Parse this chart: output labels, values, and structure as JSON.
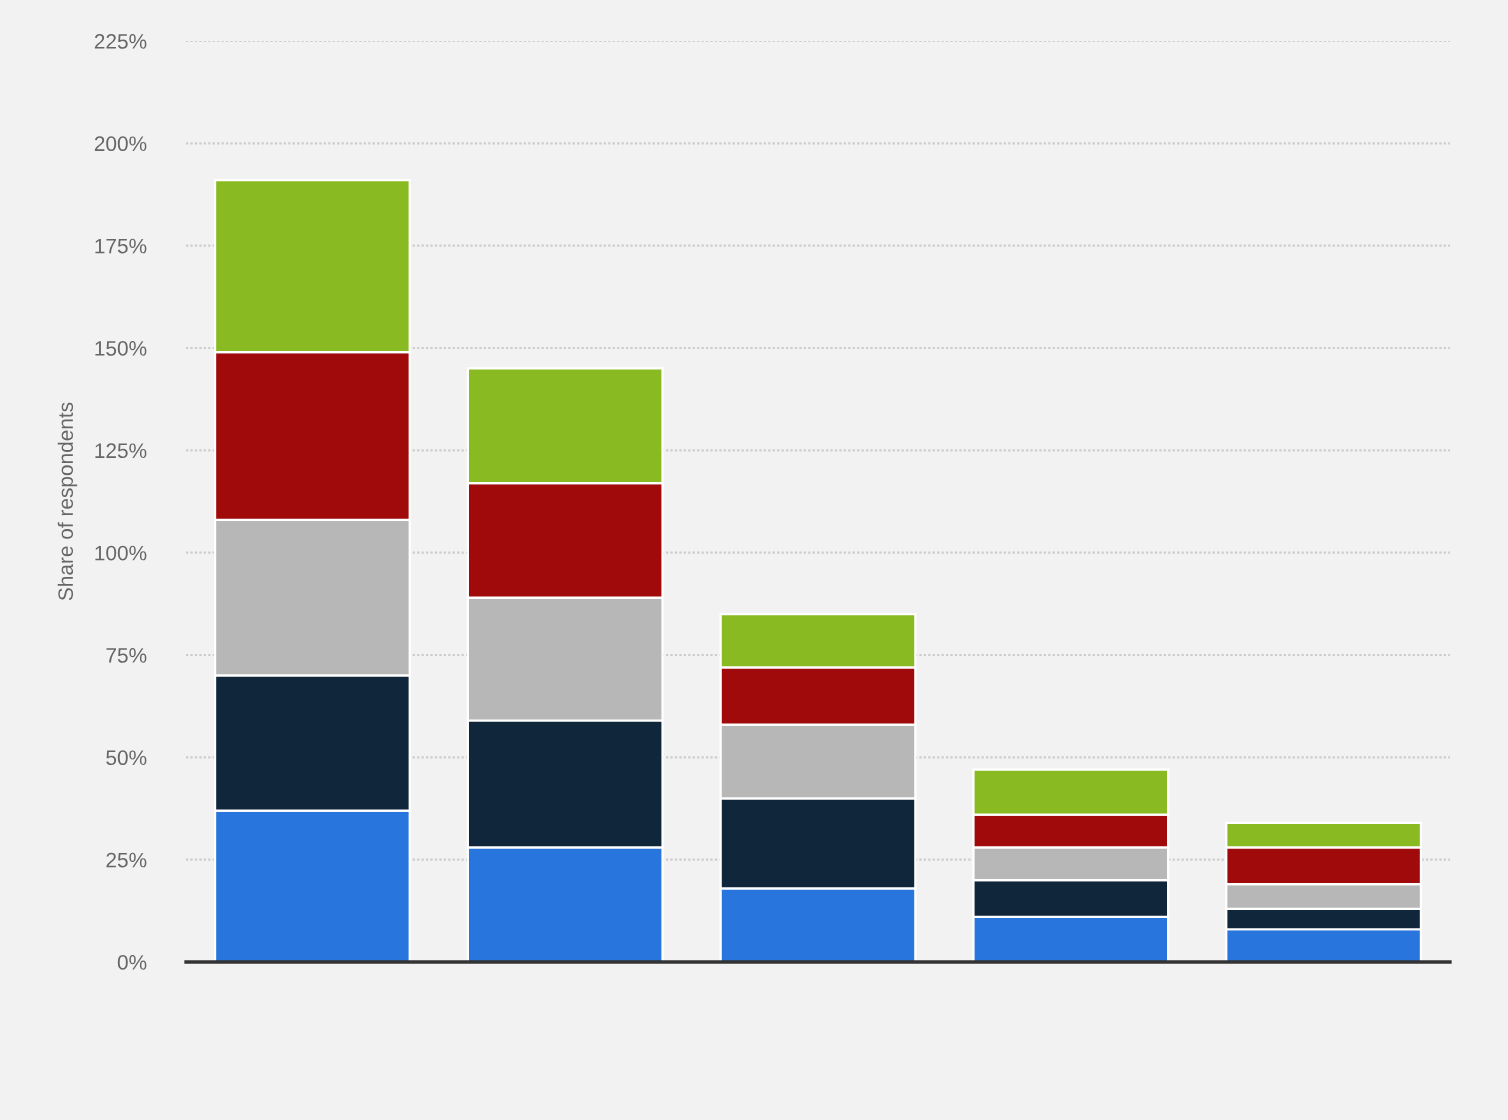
{
  "chart_data": {
    "type": "bar",
    "stacked": true,
    "ylabel": "Share of respondents",
    "categories": [
      null,
      null,
      null,
      null,
      null
    ],
    "series": [
      {
        "color": "#2876dd",
        "values": [
          37,
          28,
          18,
          11,
          8
        ]
      },
      {
        "color": "#10263b",
        "values": [
          33,
          31,
          22,
          9,
          5
        ]
      },
      {
        "color": "#b7b7b7",
        "values": [
          38,
          30,
          18,
          8,
          6
        ]
      },
      {
        "color": "#a10a0a",
        "values": [
          41,
          28,
          14,
          8,
          9
        ]
      },
      {
        "color": "#8aba22",
        "values": [
          42,
          28,
          13,
          11,
          6
        ]
      }
    ],
    "ylim": [
      0,
      225
    ],
    "yticks": [
      {
        "value": 0,
        "label": "0%"
      },
      {
        "value": 25,
        "label": "25%"
      },
      {
        "value": 50,
        "label": "50%"
      },
      {
        "value": 75,
        "label": "75%"
      },
      {
        "value": 100,
        "label": "100%"
      },
      {
        "value": 125,
        "label": "125%"
      },
      {
        "value": 150,
        "label": "150%"
      },
      {
        "value": 175,
        "label": "175%"
      },
      {
        "value": 200,
        "label": "200%"
      },
      {
        "value": 225,
        "label": "225%"
      }
    ],
    "grid": "y",
    "tick_labels": "y"
  }
}
